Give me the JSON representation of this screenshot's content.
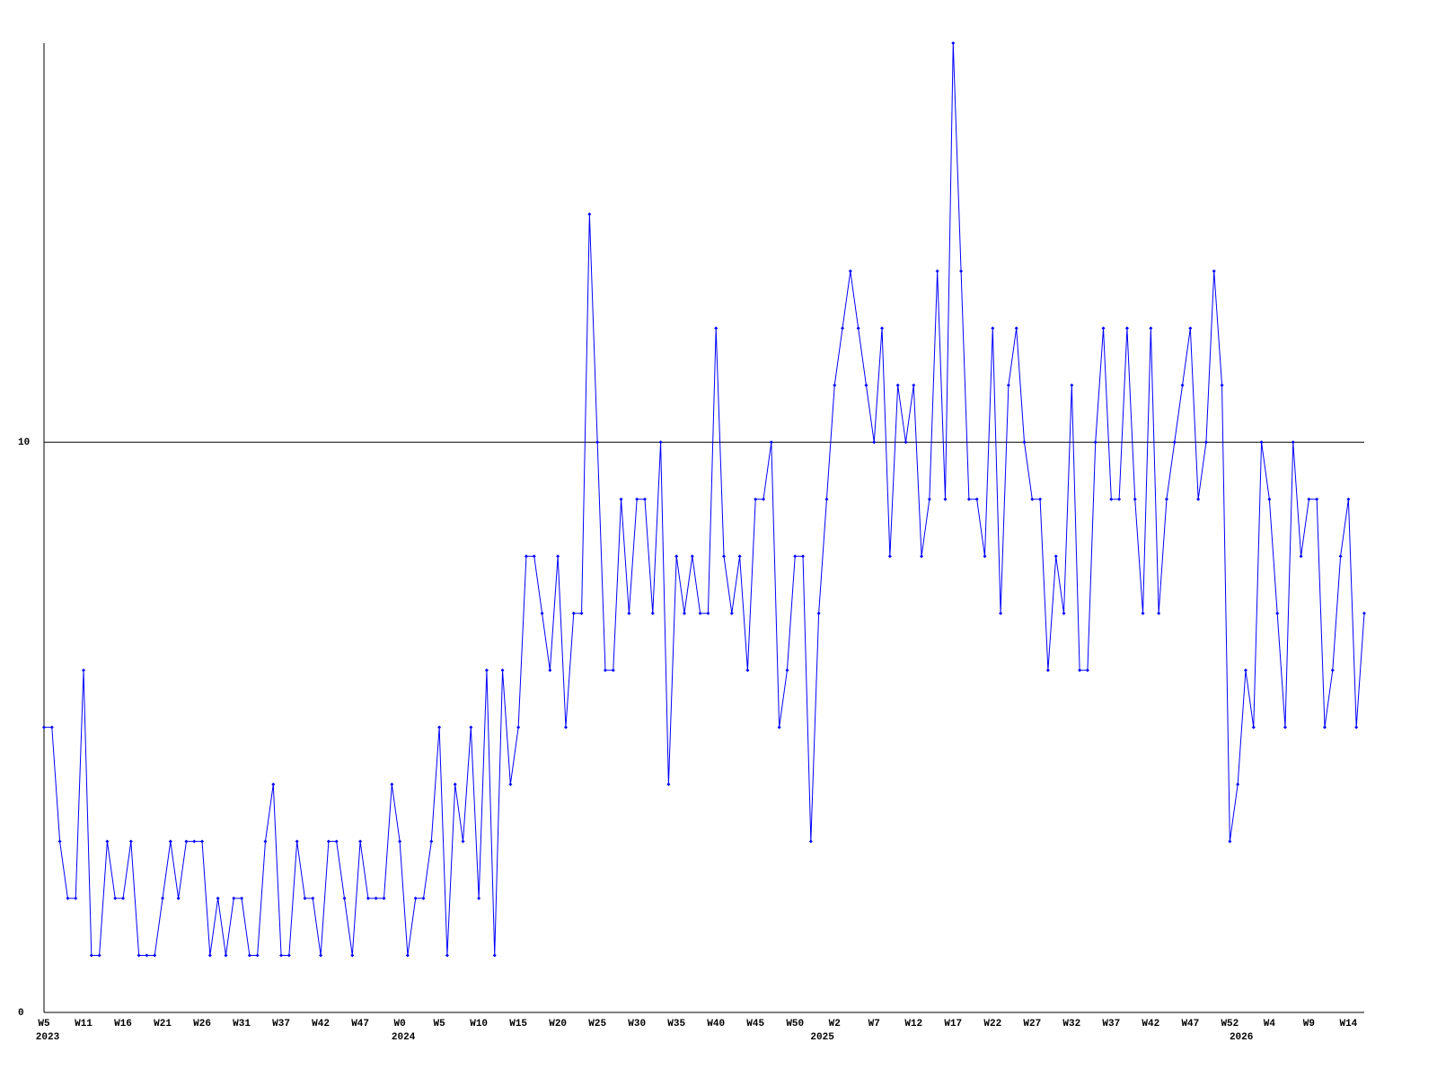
{
  "chart_data": {
    "type": "line",
    "categories": [
      "W5",
      null,
      null,
      null,
      null,
      "W11",
      null,
      null,
      null,
      null,
      "W16",
      null,
      null,
      null,
      null,
      "W21",
      null,
      null,
      null,
      null,
      "W26",
      null,
      null,
      null,
      null,
      "W31",
      null,
      null,
      null,
      null,
      "W37",
      null,
      null,
      null,
      null,
      "W42",
      null,
      null,
      null,
      null,
      "W47",
      null,
      null,
      null,
      null,
      "W0",
      null,
      null,
      null,
      null,
      "W5",
      null,
      null,
      null,
      null,
      "W10",
      null,
      null,
      null,
      null,
      "W15",
      null,
      null,
      null,
      null,
      "W20",
      null,
      null,
      null,
      null,
      "W25",
      null,
      null,
      null,
      null,
      "W30",
      null,
      null,
      null,
      null,
      "W35",
      null,
      null,
      null,
      null,
      "W40",
      null,
      null,
      null,
      null,
      "W45",
      null,
      null,
      null,
      null,
      "W50",
      null,
      null,
      null,
      null,
      "W2",
      null,
      null,
      null,
      null,
      "W7",
      null,
      null,
      null,
      null,
      "W12",
      null,
      null,
      null,
      null,
      "W17",
      null,
      null,
      null,
      null,
      "W22",
      null,
      null,
      null,
      null,
      "W27",
      null,
      null,
      null,
      null,
      "W32",
      null,
      null,
      null,
      null,
      "W37",
      null,
      null,
      null,
      null,
      "W42",
      null,
      null,
      null,
      null,
      "W47",
      null,
      null,
      null,
      null,
      "W52",
      null,
      null,
      null,
      null,
      "W4",
      null,
      null,
      null,
      null,
      "W9",
      null,
      null,
      null,
      null,
      "W14",
      null,
      null
    ],
    "years": [
      "2023",
      null,
      null,
      null,
      null,
      null,
      null,
      null,
      null,
      null,
      null,
      null,
      null,
      null,
      null,
      null,
      null,
      null,
      null,
      null,
      null,
      null,
      null,
      null,
      null,
      null,
      null,
      null,
      null,
      null,
      null,
      null,
      null,
      null,
      null,
      null,
      null,
      null,
      null,
      null,
      null,
      null,
      null,
      null,
      null,
      "2024",
      null,
      null,
      null,
      null,
      null,
      null,
      null,
      null,
      null,
      null,
      null,
      null,
      null,
      null,
      null,
      null,
      null,
      null,
      null,
      null,
      null,
      null,
      null,
      null,
      null,
      null,
      null,
      null,
      null,
      null,
      null,
      null,
      null,
      null,
      null,
      null,
      null,
      null,
      null,
      null,
      null,
      null,
      null,
      null,
      null,
      null,
      null,
      null,
      null,
      null,
      null,
      null,
      "2025",
      null,
      null,
      null,
      null,
      null,
      null,
      null,
      null,
      null,
      null,
      null,
      null,
      null,
      null,
      null,
      null,
      null,
      null,
      null,
      null,
      null,
      null,
      null,
      null,
      null,
      null,
      null,
      null,
      null,
      null,
      null,
      null,
      null,
      null,
      null,
      null,
      null,
      null,
      null,
      null,
      null,
      null,
      null,
      null,
      null,
      null,
      null,
      null,
      null,
      null,
      null,
      null,
      "2026",
      null,
      null,
      null,
      null,
      null,
      null,
      null,
      null,
      null,
      null,
      null,
      null,
      null,
      null,
      null,
      null
    ],
    "series": [
      {
        "color": "#0000ff",
        "values": [
          5,
          5,
          3,
          2,
          2,
          6,
          1,
          1,
          3,
          2,
          2,
          3,
          1,
          1,
          1,
          2,
          3,
          2,
          3,
          3,
          3,
          1,
          2,
          1,
          2,
          2,
          1,
          1,
          3,
          4,
          1,
          1,
          3,
          2,
          2,
          1,
          3,
          3,
          2,
          1,
          3,
          2,
          2,
          2,
          4,
          3,
          1,
          2,
          2,
          3,
          5,
          1,
          4,
          3,
          5,
          2,
          6,
          1,
          6,
          4,
          5,
          8,
          8,
          7,
          6,
          8,
          5,
          7,
          7,
          14,
          10,
          6,
          6,
          9,
          7,
          9,
          9,
          7,
          10,
          4,
          8,
          7,
          8,
          7,
          7,
          12,
          8,
          7,
          8,
          6,
          9,
          9,
          10,
          5,
          6,
          8,
          8,
          3,
          7,
          9,
          11,
          12,
          13,
          12,
          11,
          10,
          12,
          8,
          11,
          10,
          11,
          8,
          9,
          13,
          9,
          17,
          13,
          9,
          9,
          8,
          12,
          7,
          11,
          12,
          10,
          9,
          9,
          6,
          8,
          7,
          11,
          6,
          6,
          10,
          12,
          9,
          9,
          12,
          9,
          7,
          12,
          7,
          9,
          10,
          11,
          12,
          9,
          10,
          13,
          11,
          3,
          4,
          6,
          5,
          10,
          9,
          7,
          5,
          10,
          8,
          9,
          9,
          5,
          6,
          8,
          9,
          5,
          7
        ]
      }
    ],
    "ylim": [
      0,
      17
    ],
    "yticks": [
      0,
      10
    ],
    "grid": true
  }
}
